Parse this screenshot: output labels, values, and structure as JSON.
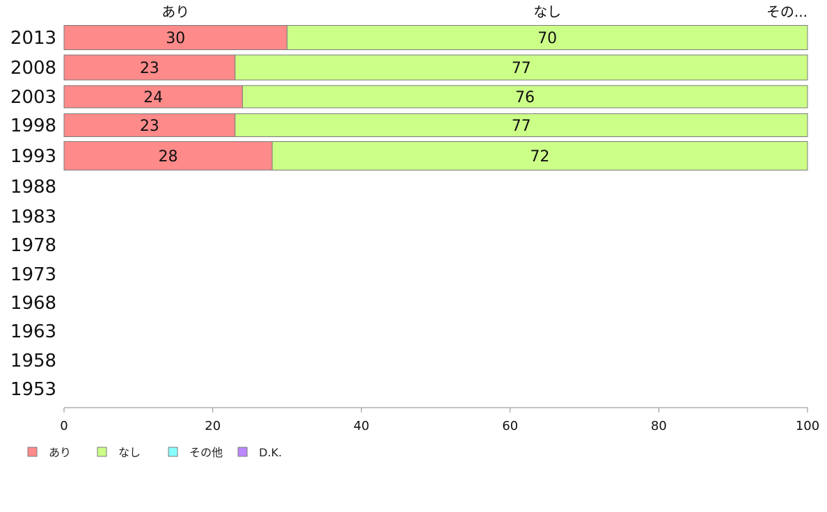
{
  "chart_data": {
    "type": "bar",
    "orientation": "horizontal",
    "stacked": true,
    "categories": [
      "2013",
      "2008",
      "2003",
      "1998",
      "1993",
      "1988",
      "1983",
      "1978",
      "1973",
      "1968",
      "1963",
      "1958",
      "1953"
    ],
    "series": [
      {
        "name": "あり",
        "color": "#ff8a8a",
        "values": [
          30,
          23,
          24,
          23,
          28,
          null,
          null,
          null,
          null,
          null,
          null,
          null,
          null
        ]
      },
      {
        "name": "なし",
        "color": "#ccff88",
        "values": [
          70,
          77,
          76,
          77,
          72,
          null,
          null,
          null,
          null,
          null,
          null,
          null,
          null
        ]
      },
      {
        "name": "その他",
        "color": "#88ffff",
        "values": [
          0,
          0,
          0,
          0,
          0,
          null,
          null,
          null,
          null,
          null,
          null,
          null,
          null
        ]
      },
      {
        "name": "D.K.",
        "color": "#bb88ff",
        "values": [
          0,
          0,
          0,
          0,
          0,
          null,
          null,
          null,
          null,
          null,
          null,
          null,
          null
        ]
      }
    ],
    "top_labels": [
      "あり",
      "なし",
      "その..."
    ],
    "xlim": [
      0,
      100
    ],
    "xticks": [
      0,
      20,
      40,
      60,
      80,
      100
    ],
    "grid": false,
    "legend_position": "bottom-left"
  }
}
